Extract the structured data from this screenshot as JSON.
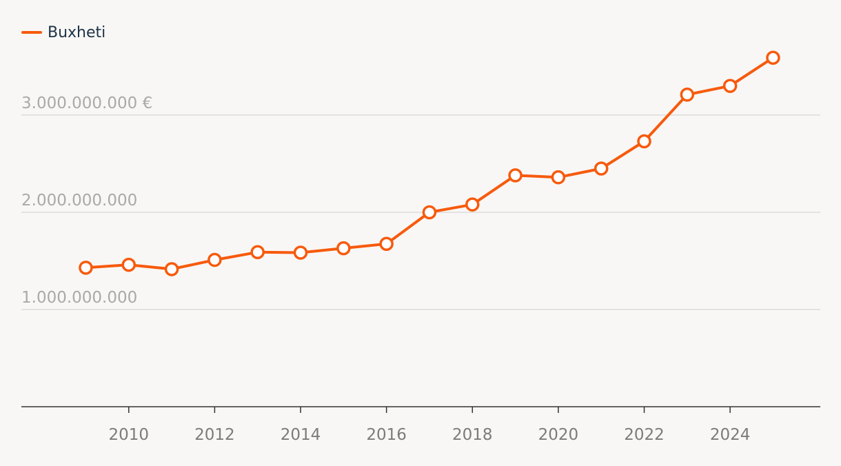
{
  "colors": {
    "series": "#f75a0d",
    "grid": "#dddcda",
    "axis": "#333333",
    "marker_fill": "#ffffff",
    "background": "#f8f7f5"
  },
  "chart_data": {
    "type": "line",
    "title": "",
    "xlabel": "",
    "ylabel": "",
    "legend": {
      "position": "top-left",
      "entries": [
        "Buxheti"
      ]
    },
    "x": [
      2009,
      2010,
      2011,
      2012,
      2013,
      2014,
      2015,
      2016,
      2017,
      2018,
      2019,
      2020,
      2021,
      2022,
      2023,
      2024,
      2025
    ],
    "series": [
      {
        "name": "Buxheti",
        "values": [
          1430000000,
          1460000000,
          1415000000,
          1510000000,
          1590000000,
          1585000000,
          1630000000,
          1675000000,
          2000000000,
          2080000000,
          2380000000,
          2360000000,
          2450000000,
          2730000000,
          3210000000,
          3300000000,
          3590000000
        ]
      }
    ],
    "xlim": [
      2007.5,
      2026.1
    ],
    "ylim": [
      0,
      3900000000
    ],
    "xticks": [
      2010,
      2012,
      2014,
      2016,
      2018,
      2020,
      2022,
      2024
    ],
    "xtick_labels": [
      "2010",
      "2012",
      "2014",
      "2016",
      "2018",
      "2020",
      "2022",
      "2024"
    ],
    "yticks": [
      1000000000,
      2000000000,
      3000000000
    ],
    "ytick_labels": [
      "1.000.000.000",
      "2.000.000.000",
      "3.000.000.000 €"
    ],
    "grid": true
  }
}
